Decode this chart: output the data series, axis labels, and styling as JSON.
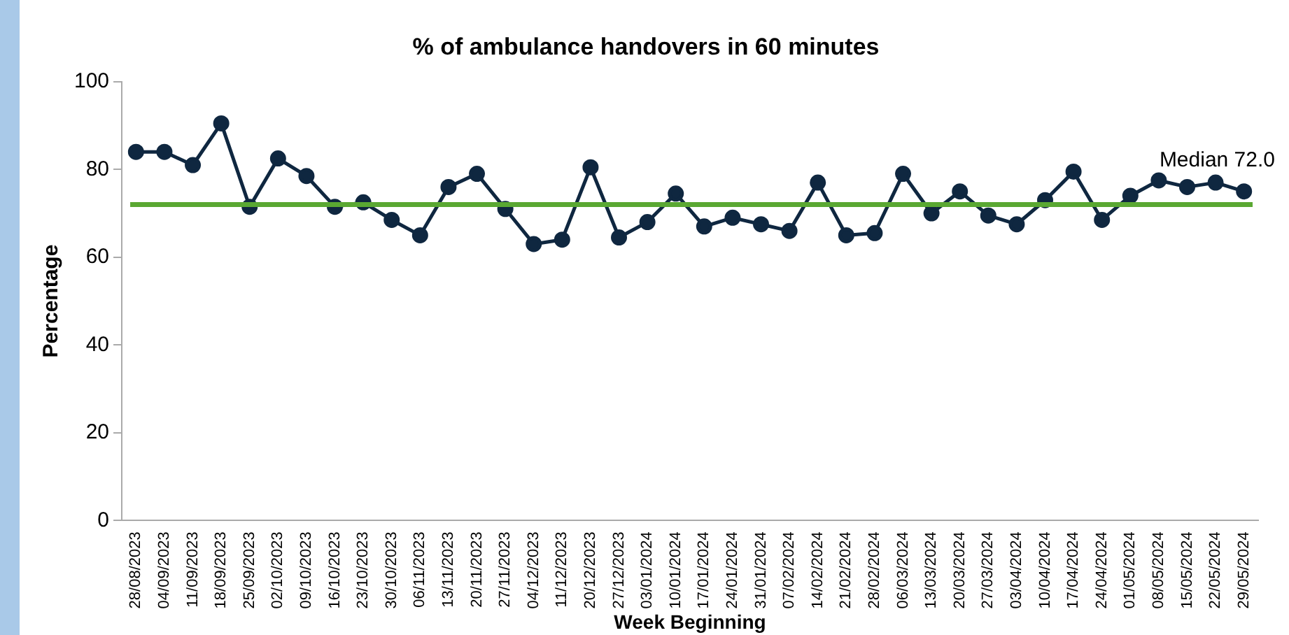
{
  "chart_data": {
    "type": "line",
    "title": "% of ambulance handovers in 60 minutes",
    "xlabel": "Week Beginning",
    "ylabel": "Percentage",
    "categories": [
      "28/08/2023",
      "04/09/2023",
      "11/09/2023",
      "18/09/2023",
      "25/09/2023",
      "02/10/2023",
      "09/10/2023",
      "16/10/2023",
      "23/10/2023",
      "30/10/2023",
      "06/11/2023",
      "13/11/2023",
      "20/11/2023",
      "27/11/2023",
      "04/12/2023",
      "11/12/2023",
      "20/12/2023",
      "27/12/2023",
      "03/01/2024",
      "10/01/2024",
      "17/01/2024",
      "24/01/2024",
      "31/01/2024",
      "07/02/2024",
      "14/02/2024",
      "21/02/2024",
      "28/02/2024",
      "06/03/2024",
      "13/03/2024",
      "20/03/2024",
      "27/03/2024",
      "03/04/2024",
      "10/04/2024",
      "17/04/2024",
      "24/04/2024",
      "01/05/2024",
      "08/05/2024",
      "15/05/2024",
      "22/05/2024",
      "29/05/2024"
    ],
    "series": [
      {
        "color": "#0f2740",
        "values": [
          84,
          84,
          81,
          90.5,
          71.5,
          82.5,
          78.5,
          71.5,
          72.5,
          68.5,
          65,
          76,
          79,
          71,
          63,
          64,
          80.5,
          64.5,
          68,
          74.5,
          67,
          69,
          67.5,
          66,
          77,
          65,
          65.5,
          79,
          70,
          75,
          69.5,
          67.5,
          73,
          79.5,
          68.5,
          74,
          77.5,
          76,
          77,
          75
        ]
      }
    ],
    "ref_lines": [
      {
        "axis": "y",
        "value": 72,
        "label": "Median 72.0",
        "color": "#5aa832"
      }
    ],
    "ylim": [
      0,
      100
    ],
    "yticks": [
      0,
      20,
      40,
      60,
      80,
      100
    ],
    "grid": false,
    "legend": false,
    "marker": "circle",
    "line_style": "solid"
  }
}
